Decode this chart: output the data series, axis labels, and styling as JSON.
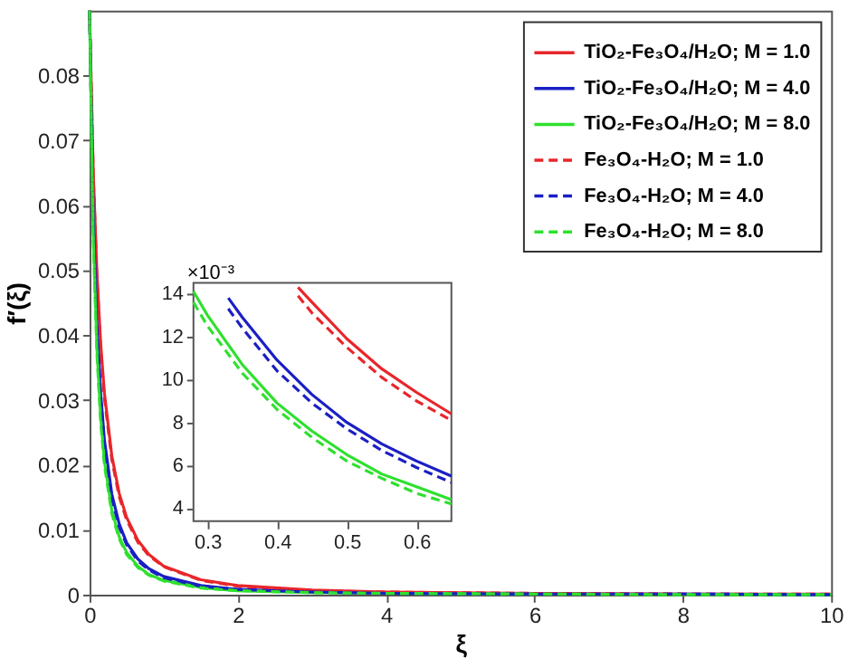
{
  "chart_data": [
    {
      "type": "line",
      "xlabel": "ξ",
      "ylabel": "f′(ξ)",
      "xlim": [
        0,
        10
      ],
      "ylim": [
        0,
        0.09
      ],
      "xticks": [
        0,
        2,
        4,
        6,
        8,
        10
      ],
      "yticks": [
        0,
        0.01,
        0.02,
        0.03,
        0.04,
        0.05,
        0.06,
        0.07,
        0.08
      ],
      "grid": false,
      "legend": "top right",
      "marker": "none",
      "x": [
        0,
        0.05,
        0.1,
        0.15,
        0.2,
        0.3,
        0.4,
        0.5,
        0.65,
        0.8,
        1,
        1.5,
        2,
        3,
        4,
        6,
        8,
        10
      ],
      "series": [
        {
          "name": "TiO₂-Fe₃O₄/H₂O; M = 1.0",
          "color": "#e8262b",
          "line_style": "solid",
          "values": [
            0.09,
            0.0652,
            0.0494,
            0.0387,
            0.0311,
            0.0214,
            0.0156,
            0.0119,
            0.0084,
            0.0062,
            0.0044,
            0.0023,
            0.0014,
            0.0007,
            0.0004,
            0.0002,
            0.0001,
            0.0001
          ]
        },
        {
          "name": "TiO₂-Fe₃O₄/H₂O; M = 4.0",
          "color": "#1a1fc4",
          "line_style": "solid",
          "values": [
            0.09,
            0.059,
            0.0416,
            0.031,
            0.0239,
            0.0155,
            0.0109,
            0.008,
            0.0055,
            0.004,
            0.0028,
            0.0014,
            0.0008,
            0.0004,
            0.0002,
            0.0001,
            0.0001,
            0
          ]
        },
        {
          "name": "TiO₂-Fe₃O₄/H₂O; M = 8.0",
          "color": "#2ee02e",
          "line_style": "solid",
          "values": [
            0.09,
            0.0556,
            0.0378,
            0.0273,
            0.0206,
            0.013,
            0.0089,
            0.0065,
            0.0044,
            0.0031,
            0.0022,
            0.0011,
            0.0006,
            0.0003,
            0.0002,
            0.0001,
            0,
            0
          ]
        },
        {
          "name": "Fe₃O₄-H₂O; M = 1.0",
          "color": "#e8262b",
          "line_style": "dashed",
          "values": [
            0.09,
            0.0646,
            0.0487,
            0.0379,
            0.0304,
            0.0208,
            0.0151,
            0.0115,
            0.0081,
            0.006,
            0.0043,
            0.0022,
            0.0013,
            0.0006,
            0.0004,
            0.0002,
            0.0001,
            0.0001
          ]
        },
        {
          "name": "Fe₃O₄-H₂O; M = 4.0",
          "color": "#1a1fc4",
          "line_style": "dashed",
          "values": [
            0.09,
            0.0583,
            0.0408,
            0.0302,
            0.0232,
            0.0149,
            0.0104,
            0.0077,
            0.0052,
            0.0038,
            0.0026,
            0.0013,
            0.0008,
            0.0004,
            0.0002,
            0.0001,
            0.0001,
            0
          ]
        },
        {
          "name": "Fe₃O₄-H₂O; M = 8.0",
          "color": "#2ee02e",
          "line_style": "dashed",
          "values": [
            0.09,
            0.0549,
            0.037,
            0.0266,
            0.02,
            0.0125,
            0.0086,
            0.0062,
            0.0042,
            0.003,
            0.0021,
            0.001,
            0.0006,
            0.0003,
            0.0002,
            0.0001,
            0,
            0
          ]
        }
      ]
    },
    {
      "type": "line",
      "ylabel": "×10⁻³",
      "xlim": [
        0.28,
        0.65
      ],
      "ylim": [
        3.4,
        14.5
      ],
      "xticks": [
        0.3,
        0.4,
        0.5,
        0.6
      ],
      "yticks": [
        4,
        6,
        8,
        10,
        12,
        14
      ],
      "grid": false,
      "marker": "none",
      "series": [
        {
          "color": "#e8262b",
          "line_style": "solid",
          "x": [
            0.43,
            0.45,
            0.5,
            0.55,
            0.6,
            0.65
          ],
          "values": [
            14.3,
            13.6,
            11.9,
            10.5,
            9.4,
            8.4
          ]
        },
        {
          "color": "#1a1fc4",
          "line_style": "solid",
          "x": [
            0.33,
            0.35,
            0.4,
            0.45,
            0.5,
            0.55,
            0.6,
            0.65
          ],
          "values": [
            13.8,
            12.9,
            10.9,
            9.3,
            8.0,
            7.0,
            6.2,
            5.5
          ]
        },
        {
          "color": "#2ee02e",
          "line_style": "solid",
          "x": [
            0.28,
            0.3,
            0.35,
            0.4,
            0.45,
            0.5,
            0.55,
            0.6,
            0.65
          ],
          "values": [
            14.1,
            13.0,
            10.7,
            8.9,
            7.6,
            6.5,
            5.6,
            5.0,
            4.4
          ]
        },
        {
          "color": "#e8262b",
          "line_style": "dashed",
          "x": [
            0.43,
            0.45,
            0.5,
            0.55,
            0.6,
            0.65
          ],
          "values": [
            13.9,
            13.1,
            11.5,
            10.1,
            9.0,
            8.1
          ]
        },
        {
          "color": "#1a1fc4",
          "line_style": "dashed",
          "x": [
            0.33,
            0.35,
            0.4,
            0.45,
            0.5,
            0.55,
            0.6,
            0.65
          ],
          "values": [
            13.3,
            12.4,
            10.4,
            8.9,
            7.7,
            6.7,
            5.9,
            5.2
          ]
        },
        {
          "color": "#2ee02e",
          "line_style": "dashed",
          "x": [
            0.28,
            0.3,
            0.35,
            0.4,
            0.45,
            0.5,
            0.55,
            0.6,
            0.65
          ],
          "values": [
            13.6,
            12.5,
            10.3,
            8.6,
            7.3,
            6.2,
            5.4,
            4.7,
            4.2
          ]
        }
      ]
    }
  ]
}
